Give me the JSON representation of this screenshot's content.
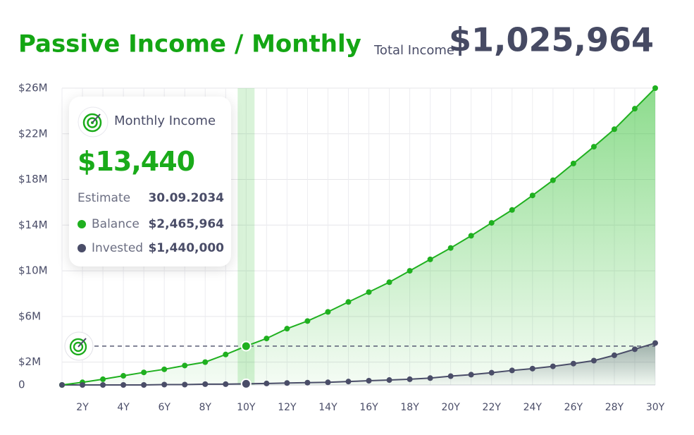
{
  "chart_data": {
    "type": "line",
    "title": "Passive Income / Monthly",
    "total_label": "Total Income",
    "total_value": "$1,025,964",
    "categories": [
      null,
      "2Y",
      null,
      "4Y",
      null,
      "6Y",
      null,
      "8Y",
      null,
      "10Y",
      null,
      "12Y",
      null,
      "14Y",
      null,
      "16Y",
      null,
      "18Y",
      null,
      "20Y",
      null,
      "22Y",
      null,
      "24Y",
      null,
      "26Y",
      null,
      "28Y",
      null,
      "30Y"
    ],
    "series": [
      {
        "name": "Balance",
        "color": "#1fb01f",
        "values": [
          0,
          0.23,
          0.5,
          0.8,
          1.1,
          1.37,
          1.7,
          2.0,
          2.67,
          3.4,
          4.07,
          4.93,
          5.6,
          6.4,
          7.27,
          8.13,
          9.0,
          10.0,
          11.0,
          12.0,
          13.07,
          14.2,
          15.33,
          16.6,
          17.93,
          19.4,
          20.87,
          22.4,
          24.2,
          26.0
        ]
      },
      {
        "name": "Invested",
        "color": "#4a4d68",
        "values": [
          0,
          0,
          0,
          0,
          0,
          0.03,
          0.03,
          0.07,
          0.07,
          0.1,
          0.13,
          0.17,
          0.2,
          0.23,
          0.3,
          0.37,
          0.43,
          0.5,
          0.6,
          0.77,
          0.9,
          1.07,
          1.27,
          1.43,
          1.63,
          1.87,
          2.13,
          2.6,
          3.13,
          3.67
        ]
      }
    ],
    "ylim": [
      0,
      26
    ],
    "yticks": [
      0,
      {
        "value": 2,
        "label": "$2M"
      },
      {
        "value": 6,
        "label": "$6M"
      },
      {
        "value": 10,
        "label": "$10M"
      },
      {
        "value": 14,
        "label": "$14M"
      },
      {
        "value": 18,
        "label": "$18M"
      },
      {
        "value": 22,
        "label": "$22M"
      },
      {
        "value": 26,
        "label": "$26M"
      }
    ],
    "grid": true,
    "highlight_category": "10Y",
    "tooltip": {
      "title": "Monthly Income",
      "value": "$13,440",
      "estimate_label": "Estimate",
      "estimate_date": "30.09.2034",
      "balance_label": "Balance",
      "balance_value": "$2,465,964",
      "invested_label": "Invested",
      "invested_value": "$1,440,000"
    }
  }
}
